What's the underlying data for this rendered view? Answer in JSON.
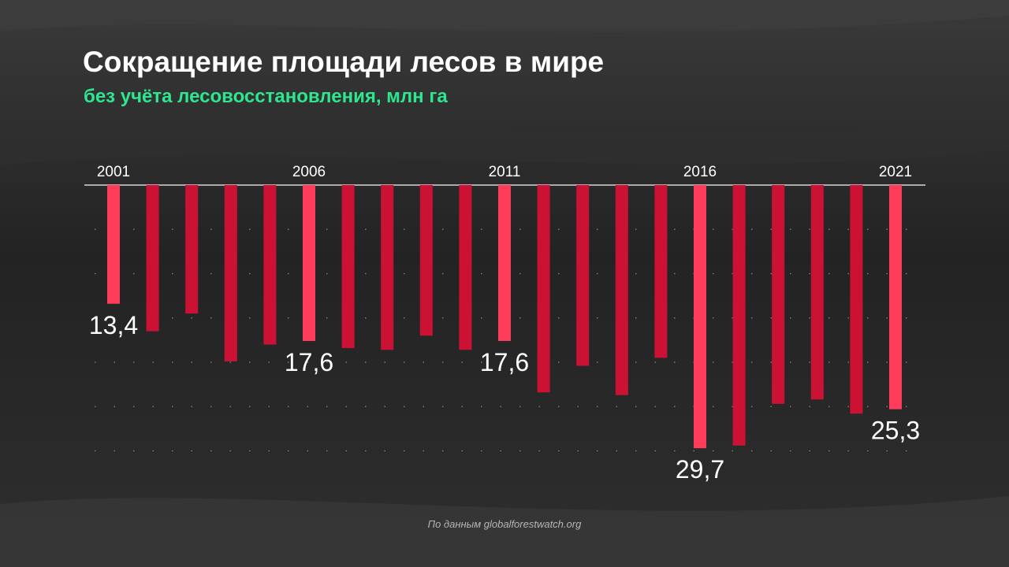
{
  "header": {
    "title": "Сокращение площади лесов в мире",
    "subtitle": "без учёта лесовосстановления, млн га"
  },
  "footer": {
    "source": "По данным globalforestwatch.org"
  },
  "colors": {
    "background": "#2a2a2a",
    "bar_highlight": "#ff3d5a",
    "bar_default": "#cc1234",
    "subtitle": "#2ee68f",
    "text": "#ffffff"
  },
  "chart_data": {
    "type": "bar",
    "orientation": "downward",
    "x": [
      2001,
      2002,
      2003,
      2004,
      2005,
      2006,
      2007,
      2008,
      2009,
      2010,
      2011,
      2012,
      2013,
      2014,
      2015,
      2016,
      2017,
      2018,
      2019,
      2020,
      2021
    ],
    "values": [
      13.4,
      16.5,
      14.5,
      19.9,
      18.0,
      17.6,
      18.4,
      18.6,
      17.0,
      18.6,
      17.6,
      23.4,
      20.4,
      23.7,
      19.5,
      29.7,
      29.4,
      24.7,
      24.2,
      25.8,
      25.3
    ],
    "highlighted": [
      2001,
      2006,
      2011,
      2016,
      2021
    ],
    "x_tick_labels": [
      "2001",
      "2006",
      "2011",
      "2016",
      "2021"
    ],
    "data_labels": [
      {
        "year": 2001,
        "text": "13,4"
      },
      {
        "year": 2006,
        "text": "17,6"
      },
      {
        "year": 2011,
        "text": "17,6"
      },
      {
        "year": 2016,
        "text": "29,7"
      },
      {
        "year": 2021,
        "text": "25,3"
      }
    ],
    "ylim": [
      0,
      30
    ],
    "grid": true,
    "legend": "none"
  }
}
